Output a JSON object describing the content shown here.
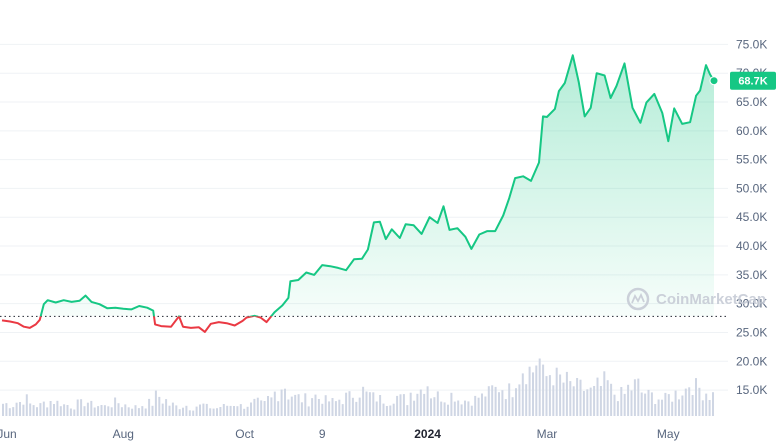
{
  "chart_data": {
    "type": "line",
    "title": "",
    "xlabel": "",
    "ylabel": "",
    "y_unit_suffix": "K",
    "ylim": [
      10.5,
      77.5
    ],
    "y_ticks": [
      "15.0K",
      "20.0K",
      "25.0K",
      "30.0K",
      "35.0K",
      "40.0K",
      "45.0K",
      "50.0K",
      "55.0K",
      "60.0K",
      "65.0K",
      "70.0K",
      "75.0K"
    ],
    "y_tick_values": [
      15,
      20,
      25,
      30,
      35,
      40,
      45,
      50,
      55,
      60,
      65,
      70,
      75
    ],
    "x_ticks": [
      {
        "label": "Jun",
        "date": "2023-06-01",
        "bold": false
      },
      {
        "label": "Aug",
        "date": "2023-08-01",
        "bold": false
      },
      {
        "label": "Oct",
        "date": "2023-10-01",
        "bold": false
      },
      {
        "label": "9",
        "date": "2023-11-09",
        "bold": false
      },
      {
        "label": "2024",
        "date": "2024-01-01",
        "bold": true
      },
      {
        "label": "Mar",
        "date": "2024-03-01",
        "bold": false
      },
      {
        "label": "May",
        "date": "2024-05-01",
        "bold": false
      }
    ],
    "x_range": [
      "2023-06-01",
      "2024-05-24"
    ],
    "reference_price": 27.8,
    "reference_line": "dotted",
    "colors": {
      "above_reference": "#16c784",
      "below_reference": "#ea3943",
      "volume_bars": "#cfd6e4",
      "grid": "#eff2f5",
      "badge": "#16c784"
    },
    "current_price_label": "68.7K",
    "grid": true,
    "watermark": "CoinMarketCap",
    "series": [
      {
        "values": [
          {
            "x": "2023-06-01",
            "y": 27.1
          },
          {
            "x": "2023-06-05",
            "y": 26.9
          },
          {
            "x": "2023-06-09",
            "y": 26.6
          },
          {
            "x": "2023-06-12",
            "y": 26.0
          },
          {
            "x": "2023-06-15",
            "y": 25.8
          },
          {
            "x": "2023-06-18",
            "y": 26.4
          },
          {
            "x": "2023-06-20",
            "y": 27.2
          },
          {
            "x": "2023-06-22",
            "y": 29.9
          },
          {
            "x": "2023-06-24",
            "y": 30.6
          },
          {
            "x": "2023-06-28",
            "y": 30.2
          },
          {
            "x": "2023-07-02",
            "y": 30.6
          },
          {
            "x": "2023-07-06",
            "y": 30.3
          },
          {
            "x": "2023-07-10",
            "y": 30.5
          },
          {
            "x": "2023-07-13",
            "y": 31.4
          },
          {
            "x": "2023-07-16",
            "y": 30.3
          },
          {
            "x": "2023-07-20",
            "y": 29.9
          },
          {
            "x": "2023-07-24",
            "y": 29.2
          },
          {
            "x": "2023-07-28",
            "y": 29.3
          },
          {
            "x": "2023-08-01",
            "y": 29.1
          },
          {
            "x": "2023-08-05",
            "y": 29.0
          },
          {
            "x": "2023-08-09",
            "y": 29.6
          },
          {
            "x": "2023-08-13",
            "y": 29.3
          },
          {
            "x": "2023-08-16",
            "y": 28.8
          },
          {
            "x": "2023-08-17",
            "y": 26.4
          },
          {
            "x": "2023-08-20",
            "y": 26.1
          },
          {
            "x": "2023-08-25",
            "y": 26.0
          },
          {
            "x": "2023-08-29",
            "y": 27.8
          },
          {
            "x": "2023-08-31",
            "y": 26.0
          },
          {
            "x": "2023-09-04",
            "y": 25.8
          },
          {
            "x": "2023-09-08",
            "y": 25.9
          },
          {
            "x": "2023-09-11",
            "y": 25.1
          },
          {
            "x": "2023-09-14",
            "y": 26.5
          },
          {
            "x": "2023-09-18",
            "y": 26.8
          },
          {
            "x": "2023-09-22",
            "y": 26.6
          },
          {
            "x": "2023-09-26",
            "y": 26.2
          },
          {
            "x": "2023-09-30",
            "y": 27.0
          },
          {
            "x": "2023-10-02",
            "y": 27.6
          },
          {
            "x": "2023-10-06",
            "y": 27.9
          },
          {
            "x": "2023-10-09",
            "y": 27.6
          },
          {
            "x": "2023-10-12",
            "y": 26.8
          },
          {
            "x": "2023-10-16",
            "y": 28.5
          },
          {
            "x": "2023-10-20",
            "y": 29.7
          },
          {
            "x": "2023-10-23",
            "y": 31.0
          },
          {
            "x": "2023-10-24",
            "y": 33.9
          },
          {
            "x": "2023-10-28",
            "y": 34.1
          },
          {
            "x": "2023-11-01",
            "y": 35.4
          },
          {
            "x": "2023-11-05",
            "y": 35.0
          },
          {
            "x": "2023-11-09",
            "y": 36.7
          },
          {
            "x": "2023-11-13",
            "y": 36.5
          },
          {
            "x": "2023-11-17",
            "y": 36.2
          },
          {
            "x": "2023-11-21",
            "y": 35.8
          },
          {
            "x": "2023-11-25",
            "y": 37.7
          },
          {
            "x": "2023-11-29",
            "y": 37.8
          },
          {
            "x": "2023-12-02",
            "y": 39.4
          },
          {
            "x": "2023-12-05",
            "y": 44.1
          },
          {
            "x": "2023-12-08",
            "y": 44.2
          },
          {
            "x": "2023-12-11",
            "y": 41.2
          },
          {
            "x": "2023-12-14",
            "y": 42.9
          },
          {
            "x": "2023-12-18",
            "y": 41.4
          },
          {
            "x": "2023-12-21",
            "y": 43.8
          },
          {
            "x": "2023-12-25",
            "y": 43.6
          },
          {
            "x": "2023-12-29",
            "y": 42.1
          },
          {
            "x": "2024-01-02",
            "y": 45.0
          },
          {
            "x": "2024-01-06",
            "y": 44.0
          },
          {
            "x": "2024-01-09",
            "y": 46.9
          },
          {
            "x": "2024-01-12",
            "y": 42.8
          },
          {
            "x": "2024-01-16",
            "y": 43.1
          },
          {
            "x": "2024-01-20",
            "y": 41.6
          },
          {
            "x": "2024-01-23",
            "y": 39.5
          },
          {
            "x": "2024-01-27",
            "y": 42.0
          },
          {
            "x": "2024-01-31",
            "y": 42.6
          },
          {
            "x": "2024-02-04",
            "y": 42.6
          },
          {
            "x": "2024-02-08",
            "y": 45.3
          },
          {
            "x": "2024-02-11",
            "y": 48.3
          },
          {
            "x": "2024-02-14",
            "y": 51.8
          },
          {
            "x": "2024-02-18",
            "y": 52.1
          },
          {
            "x": "2024-02-22",
            "y": 51.3
          },
          {
            "x": "2024-02-26",
            "y": 54.5
          },
          {
            "x": "2024-02-28",
            "y": 62.5
          },
          {
            "x": "2024-03-01",
            "y": 62.4
          },
          {
            "x": "2024-03-05",
            "y": 63.8
          },
          {
            "x": "2024-03-07",
            "y": 66.9
          },
          {
            "x": "2024-03-10",
            "y": 68.3
          },
          {
            "x": "2024-03-14",
            "y": 73.1
          },
          {
            "x": "2024-03-17",
            "y": 68.4
          },
          {
            "x": "2024-03-20",
            "y": 62.5
          },
          {
            "x": "2024-03-23",
            "y": 64.0
          },
          {
            "x": "2024-03-26",
            "y": 70.0
          },
          {
            "x": "2024-03-30",
            "y": 69.6
          },
          {
            "x": "2024-04-02",
            "y": 65.7
          },
          {
            "x": "2024-04-05",
            "y": 67.8
          },
          {
            "x": "2024-04-09",
            "y": 71.7
          },
          {
            "x": "2024-04-13",
            "y": 64.0
          },
          {
            "x": "2024-04-17",
            "y": 61.4
          },
          {
            "x": "2024-04-20",
            "y": 64.9
          },
          {
            "x": "2024-04-24",
            "y": 66.4
          },
          {
            "x": "2024-04-28",
            "y": 63.1
          },
          {
            "x": "2024-05-01",
            "y": 58.2
          },
          {
            "x": "2024-05-04",
            "y": 63.9
          },
          {
            "x": "2024-05-08",
            "y": 61.2
          },
          {
            "x": "2024-05-12",
            "y": 61.5
          },
          {
            "x": "2024-05-15",
            "y": 66.1
          },
          {
            "x": "2024-05-17",
            "y": 67.0
          },
          {
            "x": "2024-05-20",
            "y": 71.4
          },
          {
            "x": "2024-05-22",
            "y": 69.8
          },
          {
            "x": "2024-05-24",
            "y": 68.7
          }
        ]
      }
    ],
    "volume_scale": "relative 0-1",
    "volume": [
      0.22,
      0.2,
      0.25,
      0.3,
      0.21,
      0.19,
      0.23,
      0.27,
      0.24,
      0.2,
      0.18,
      0.22,
      0.25,
      0.2,
      0.19,
      0.17,
      0.21,
      0.24,
      0.2,
      0.18,
      0.16,
      0.2,
      0.23,
      0.35,
      0.28,
      0.2,
      0.17,
      0.19,
      0.15,
      0.18,
      0.2,
      0.16,
      0.14,
      0.17,
      0.19,
      0.22,
      0.18,
      0.2,
      0.24,
      0.21,
      0.3,
      0.42,
      0.55,
      0.38,
      0.33,
      0.3,
      0.28,
      0.36,
      0.32,
      0.27,
      0.25,
      0.3,
      0.34,
      0.4,
      0.45,
      0.38,
      0.33,
      0.3,
      0.28,
      0.35,
      0.31,
      0.27,
      0.42,
      0.48,
      0.6,
      0.4,
      0.36,
      0.33,
      0.38,
      0.3,
      0.28,
      0.3,
      0.34,
      0.4,
      0.47,
      0.52,
      0.45,
      0.5,
      0.75,
      0.9,
      0.82,
      1.0,
      0.7,
      0.78,
      0.66,
      0.6,
      0.55,
      0.5,
      0.48,
      0.44,
      0.52,
      0.58,
      0.46,
      0.4,
      0.38,
      0.5,
      0.55,
      0.42,
      0.36,
      0.33,
      0.3,
      0.35,
      0.4,
      0.48,
      0.6,
      0.5,
      0.44,
      0.38
    ]
  }
}
